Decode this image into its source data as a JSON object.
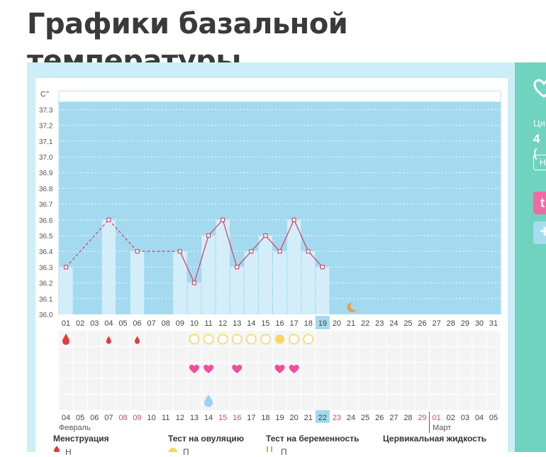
{
  "page": {
    "title": "Графики базальной температуры"
  },
  "sidebar": {
    "label_partial": "Ци",
    "value_partial": "4 (",
    "button_partial": "Н",
    "pink_button_partial": "t",
    "blue_button_partial": "+"
  },
  "colors": {
    "chart_bg": "#a4daf0",
    "bar_fill": "#d4eef9",
    "line": "#d6456f",
    "heart": "#ec4f9b",
    "drop_red": "#e33b3b",
    "ovulation_yellow": "#f8d75a",
    "accent_teal": "#6fd3bf",
    "holiday_red": "#d6456f"
  },
  "chart_data": {
    "type": "bar",
    "ylabel": "C°",
    "ylim": [
      36.0,
      37.35
    ],
    "yticks": [
      "36.0",
      "36.1",
      "36.2",
      "36.3",
      "36.4",
      "36.5",
      "36.6",
      "36.7",
      "36.8",
      "36.9",
      "37.0",
      "37.1",
      "37.2",
      "37.3"
    ],
    "cycle_days": [
      "01",
      "02",
      "03",
      "04",
      "05",
      "06",
      "07",
      "08",
      "09",
      "10",
      "11",
      "12",
      "13",
      "14",
      "15",
      "16",
      "17",
      "18",
      "19",
      "20",
      "21",
      "22",
      "23",
      "24",
      "25",
      "26",
      "27",
      "28",
      "29",
      "30",
      "31"
    ],
    "temperatures": [
      36.3,
      null,
      null,
      36.6,
      null,
      36.4,
      null,
      null,
      36.4,
      36.2,
      36.5,
      36.6,
      36.3,
      36.4,
      36.5,
      36.4,
      36.6,
      36.4,
      36.3,
      null,
      null,
      null,
      null,
      null,
      null,
      null,
      null,
      null,
      null,
      null,
      null
    ],
    "highlight_day": "19",
    "moon_day": "21",
    "dates": [
      "04",
      "05",
      "06",
      "07",
      "08",
      "09",
      "10",
      "11",
      "12",
      "13",
      "14",
      "15",
      "16",
      "17",
      "18",
      "19",
      "20",
      "21",
      "22",
      "23",
      "24",
      "25",
      "26",
      "27",
      "28",
      "29",
      "01",
      "02",
      "03",
      "04",
      "05"
    ],
    "holiday_dates_idx": [
      4,
      5,
      11,
      12,
      19,
      25,
      26
    ],
    "highlight_date_idx": 18,
    "month_start": "Февраль",
    "month_next": "Март",
    "month_next_idx": 26,
    "menstruation_idx": [
      0,
      3,
      5
    ],
    "ovulation_test": [
      "",
      "",
      "",
      "",
      "",
      "",
      "",
      "",
      "",
      "neg",
      "neg",
      "neg",
      "neg",
      "neg",
      "neg",
      "pos",
      "neg",
      "neg",
      "",
      "",
      "",
      "",
      "",
      "",
      "",
      "",
      "",
      "",
      "",
      "",
      ""
    ],
    "intercourse_idx": [
      9,
      10,
      12,
      15,
      16
    ],
    "cervical_idx": [
      10
    ]
  },
  "legend": [
    {
      "title": "Менструация",
      "item": "Н"
    },
    {
      "title": "Тест на овуляцию",
      "item": "П"
    },
    {
      "title": "Тест на беременность",
      "item": "П"
    },
    {
      "title": "Цервикальная жидкость",
      "item": ""
    }
  ]
}
